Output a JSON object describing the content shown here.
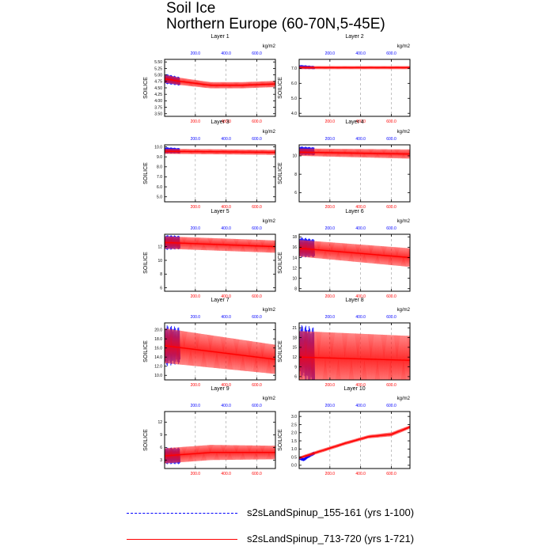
{
  "page": {
    "title": "Soil Ice",
    "subtitle": "Northern Europe (60-70N,5-45E)",
    "colors": {
      "blue_series": "#0000ff",
      "red_series": "#ff0000",
      "red_light": "#ff9a9a",
      "grid": "#9a9a9a",
      "axis": "#000000"
    }
  },
  "legend": [
    {
      "label": "s2sLandSpinup_155-161 (yrs 1-100)",
      "color": "#0000ff",
      "style": "dashed"
    },
    {
      "label": "s2sLandSpinup_713-720 (yrs 1-721)",
      "color": "#ff0000",
      "style": "solid"
    }
  ],
  "chart_data": [
    {
      "type": "line",
      "title": "Layer 1",
      "ylabel": "SOILICE",
      "units": "kg/m2",
      "xlim": [
        0,
        721
      ],
      "ylim": [
        3.4,
        5.6
      ],
      "yticks": [
        3.5,
        3.75,
        4.0,
        4.25,
        4.5,
        4.75,
        5.0,
        5.25,
        5.5
      ],
      "yticklabels": [
        "3.50",
        "3.75",
        "4.00",
        "4.25",
        "4.50",
        "4.75",
        "5.00",
        "5.25",
        "5.50"
      ],
      "xticks": [
        200,
        400,
        600
      ],
      "xticklabels": [
        "200.0",
        "400.0",
        "600.0"
      ],
      "series": [
        {
          "name": "s2sLandSpinup_155-161 (yrs 1-100)",
          "color": "#0000ff",
          "years": [
            0,
            100
          ],
          "mean": [
            4.85,
            4.75
          ],
          "amplitude": [
            0.18,
            0.15
          ],
          "wiggle": 0.12
        },
        {
          "name": "s2sLandSpinup_713-720 (yrs 1-721)",
          "color": "#ff0000",
          "years": [
            0,
            100,
            300,
            500,
            721
          ],
          "mean": [
            4.85,
            4.75,
            4.6,
            4.6,
            4.65
          ],
          "amplitude": [
            0.15,
            0.14,
            0.12,
            0.12,
            0.12
          ],
          "wiggle": 0
        }
      ]
    },
    {
      "type": "line",
      "title": "Layer 2",
      "ylabel": "SOILICE",
      "units": "kg/m2",
      "xlim": [
        0,
        721
      ],
      "ylim": [
        3.8,
        7.6
      ],
      "yticks": [
        4.0,
        5.0,
        6.0,
        7.0
      ],
      "yticklabels": [
        "4.0",
        "5.0",
        "6.0",
        "7.0"
      ],
      "xticks": [
        200,
        400,
        600
      ],
      "xticklabels": [
        "200.0",
        "400.0",
        "600.0"
      ],
      "series": [
        {
          "name": "s2sLandSpinup_155-161 (yrs 1-100)",
          "color": "#0000ff",
          "years": [
            0,
            100
          ],
          "mean": [
            7.1,
            7.05
          ],
          "amplitude": [
            0.12,
            0.1
          ],
          "wiggle": 0.1
        },
        {
          "name": "s2sLandSpinup_713-720 (yrs 1-721)",
          "color": "#ff0000",
          "years": [
            0,
            721
          ],
          "mean": [
            7.05,
            7.05
          ],
          "amplitude": [
            0.1,
            0.1
          ],
          "wiggle": 0
        }
      ]
    },
    {
      "type": "line",
      "title": "Layer 3",
      "ylabel": "SOILICE",
      "units": "kg/m2",
      "xlim": [
        0,
        721
      ],
      "ylim": [
        4.5,
        10.2
      ],
      "yticks": [
        5.0,
        6.0,
        7.0,
        8.0,
        9.0,
        10.0
      ],
      "yticklabels": [
        "5.0",
        "6.0",
        "7.0",
        "8.0",
        "9.0",
        "10.0"
      ],
      "xticks": [
        200,
        400,
        600
      ],
      "xticklabels": [
        "200.0",
        "400.0",
        "600.0"
      ],
      "series": [
        {
          "name": "s2sLandSpinup_155-161 (yrs 1-100)",
          "color": "#0000ff",
          "years": [
            0,
            100
          ],
          "mean": [
            9.65,
            9.6
          ],
          "amplitude": [
            0.3,
            0.25
          ],
          "wiggle": 0.1
        },
        {
          "name": "s2sLandSpinup_713-720 (yrs 1-721)",
          "color": "#ff0000",
          "years": [
            0,
            721
          ],
          "mean": [
            9.55,
            9.45
          ],
          "amplitude": [
            0.25,
            0.25
          ],
          "wiggle": 0
        }
      ]
    },
    {
      "type": "line",
      "title": "Layer 4",
      "ylabel": "SOILICE",
      "units": "kg/m2",
      "xlim": [
        0,
        721
      ],
      "ylim": [
        5.0,
        11.2
      ],
      "yticks": [
        6,
        8,
        10
      ],
      "yticklabels": [
        "6",
        "8",
        "10"
      ],
      "xticks": [
        200,
        400,
        600
      ],
      "xticklabels": [
        "200.0",
        "400.0",
        "600.0"
      ],
      "series": [
        {
          "name": "s2sLandSpinup_155-161 (yrs 1-100)",
          "color": "#0000ff",
          "years": [
            0,
            100
          ],
          "mean": [
            10.55,
            10.5
          ],
          "amplitude": [
            0.45,
            0.4
          ],
          "wiggle": 0.1
        },
        {
          "name": "s2sLandSpinup_713-720 (yrs 1-721)",
          "color": "#ff0000",
          "years": [
            0,
            721
          ],
          "mean": [
            10.4,
            10.2
          ],
          "amplitude": [
            0.4,
            0.5
          ],
          "wiggle": 0
        }
      ]
    },
    {
      "type": "line",
      "title": "Layer 5",
      "ylabel": "SOILICE",
      "units": "kg/m2",
      "xlim": [
        0,
        721
      ],
      "ylim": [
        5.5,
        13.8
      ],
      "yticks": [
        6,
        8,
        10,
        12
      ],
      "yticklabels": [
        "6",
        "8",
        "10",
        "12"
      ],
      "xticks": [
        200,
        400,
        600
      ],
      "xticklabels": [
        "200.0",
        "400.0",
        "600.0"
      ],
      "series": [
        {
          "name": "s2sLandSpinup_155-161 (yrs 1-100)",
          "color": "#0000ff",
          "years": [
            0,
            100
          ],
          "mean": [
            12.6,
            12.6
          ],
          "amplitude": [
            1.0,
            0.9
          ],
          "wiggle": 0.1
        },
        {
          "name": "s2sLandSpinup_713-720 (yrs 1-721)",
          "color": "#ff0000",
          "years": [
            0,
            721
          ],
          "mean": [
            12.6,
            12.0
          ],
          "amplitude": [
            0.9,
            0.9
          ],
          "wiggle": 0
        }
      ]
    },
    {
      "type": "line",
      "title": "Layer 6",
      "ylabel": "SOILICE",
      "units": "kg/m2",
      "xlim": [
        0,
        721
      ],
      "ylim": [
        7.5,
        18.5
      ],
      "yticks": [
        8,
        10,
        12,
        14,
        16,
        18
      ],
      "yticklabels": [
        "8",
        "10",
        "12",
        "14",
        "16",
        "18"
      ],
      "xticks": [
        200,
        400,
        600
      ],
      "xticklabels": [
        "200.0",
        "400.0",
        "600.0"
      ],
      "series": [
        {
          "name": "s2sLandSpinup_155-161 (yrs 1-100)",
          "color": "#0000ff",
          "years": [
            0,
            100
          ],
          "mean": [
            16.0,
            15.8
          ],
          "amplitude": [
            1.8,
            1.6
          ],
          "wiggle": 0.1
        },
        {
          "name": "s2sLandSpinup_713-720 (yrs 1-721)",
          "color": "#ff0000",
          "years": [
            0,
            721
          ],
          "mean": [
            15.8,
            14.0
          ],
          "amplitude": [
            1.6,
            1.8
          ],
          "wiggle": 0
        }
      ]
    },
    {
      "type": "line",
      "title": "Layer 7",
      "ylabel": "SOILICE",
      "units": "kg/m2",
      "xlim": [
        0,
        721
      ],
      "ylim": [
        9.0,
        21.5
      ],
      "yticks": [
        10.0,
        12.0,
        14.0,
        16.0,
        18.0,
        20.0
      ],
      "yticklabels": [
        "10.0",
        "12.0",
        "14.0",
        "16.0",
        "18.0",
        "20.0"
      ],
      "xticks": [
        200,
        400,
        600
      ],
      "xticklabels": [
        "200.0",
        "400.0",
        "600.0"
      ],
      "series": [
        {
          "name": "s2sLandSpinup_155-161 (yrs 1-100)",
          "color": "#0000ff",
          "years": [
            0,
            100
          ],
          "mean": [
            16.5,
            16.5
          ],
          "amplitude": [
            4.0,
            3.5
          ],
          "wiggle": 0.15
        },
        {
          "name": "s2sLandSpinup_713-720 (yrs 1-721)",
          "color": "#ff0000",
          "years": [
            0,
            721
          ],
          "mean": [
            16.5,
            13.5
          ],
          "amplitude": [
            3.8,
            3.2
          ],
          "wiggle": 0
        }
      ]
    },
    {
      "type": "line",
      "title": "Layer 8",
      "ylabel": "SOILICE",
      "units": "kg/m2",
      "xlim": [
        0,
        721
      ],
      "ylim": [
        5.0,
        22.5
      ],
      "yticks": [
        6,
        9,
        12,
        15,
        18,
        21
      ],
      "yticklabels": [
        "6",
        "9",
        "12",
        "15",
        "18",
        "21"
      ],
      "xticks": [
        200,
        400,
        600
      ],
      "xticklabels": [
        "200.0",
        "400.0",
        "600.0"
      ],
      "series": [
        {
          "name": "s2sLandSpinup_155-161 (yrs 1-100)",
          "color": "#0000ff",
          "years": [
            0,
            100
          ],
          "mean": [
            14.0,
            12.0
          ],
          "amplitude": [
            7.0,
            8.0
          ],
          "wiggle": 0.15
        },
        {
          "name": "s2sLandSpinup_713-720 (yrs 1-721)",
          "color": "#ff0000",
          "years": [
            0,
            721
          ],
          "mean": [
            12.0,
            11.0
          ],
          "amplitude": [
            8.0,
            7.5
          ],
          "wiggle": 0
        }
      ]
    },
    {
      "type": "line",
      "title": "Layer 9",
      "ylabel": "SOILICE",
      "units": "kg/m2",
      "xlim": [
        0,
        721
      ],
      "ylim": [
        1.0,
        14.5
      ],
      "yticks": [
        3,
        6,
        9,
        12
      ],
      "yticklabels": [
        "3",
        "6",
        "9",
        "12"
      ],
      "xticks": [
        200,
        400,
        600
      ],
      "xticklabels": [
        "200.0",
        "400.0",
        "600.0"
      ],
      "series": [
        {
          "name": "s2sLandSpinup_155-161 (yrs 1-100)",
          "color": "#0000ff",
          "years": [
            0,
            100
          ],
          "mean": [
            4.0,
            4.0
          ],
          "amplitude": [
            1.8,
            1.8
          ],
          "wiggle": 0.1
        },
        {
          "name": "s2sLandSpinup_713-720 (yrs 1-721)",
          "color": "#ff0000",
          "years": [
            0,
            300,
            721
          ],
          "mean": [
            4.0,
            4.8,
            4.8
          ],
          "amplitude": [
            1.8,
            1.8,
            1.6
          ],
          "wiggle": 0
        }
      ]
    },
    {
      "type": "line",
      "title": "Layer 10",
      "ylabel": "SOILICE",
      "units": "kg/m2",
      "xlim": [
        0,
        721
      ],
      "ylim": [
        -0.2,
        3.3
      ],
      "yticks": [
        0.0,
        0.5,
        1.0,
        1.5,
        2.0,
        2.5,
        3.0
      ],
      "yticklabels": [
        "0.0",
        "0.5",
        "1.0",
        "1.5",
        "2.0",
        "2.5",
        "3.0"
      ],
      "xticks": [
        200,
        400,
        600
      ],
      "xticklabels": [
        "200.0",
        "400.0",
        "600.0"
      ],
      "series": [
        {
          "name": "s2sLandSpinup_155-161 (yrs 1-100)",
          "color": "#0000ff",
          "years": [
            0,
            30,
            60,
            100
          ],
          "mean": [
            0.45,
            0.35,
            0.55,
            0.75
          ],
          "amplitude": [
            0.1,
            0.1,
            0.1,
            0.1
          ],
          "wiggle": 0.06
        },
        {
          "name": "s2sLandSpinup_713-720 (yrs 1-721)",
          "color": "#ff0000",
          "years": [
            0,
            100,
            300,
            450,
            600,
            721
          ],
          "mean": [
            0.45,
            0.75,
            1.35,
            1.75,
            1.9,
            2.35
          ],
          "amplitude": [
            0.08,
            0.1,
            0.1,
            0.1,
            0.12,
            0.1
          ],
          "wiggle": 0
        }
      ]
    }
  ]
}
